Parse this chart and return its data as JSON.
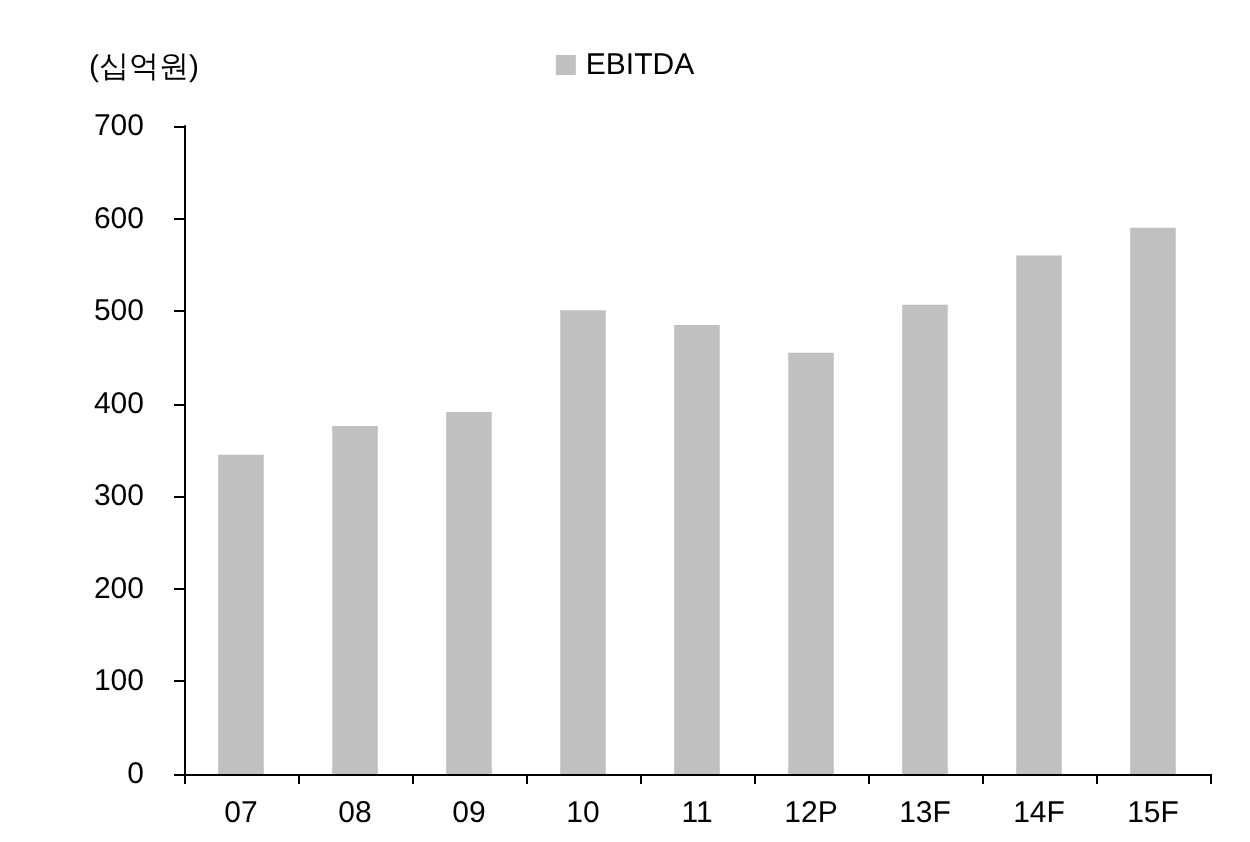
{
  "chart_data": {
    "type": "bar",
    "ylabel": "(십억원)",
    "categories": [
      "07",
      "08",
      "09",
      "10",
      "11",
      "12P",
      "13F",
      "14F",
      "15F"
    ],
    "series": [
      {
        "name": "EBITDA",
        "color": "#c0c0c0",
        "values": [
          345,
          376,
          391,
          501,
          485,
          455,
          507,
          560,
          590
        ]
      }
    ],
    "ylim": [
      0,
      700
    ],
    "yticks": [
      0,
      100,
      200,
      300,
      400,
      500,
      600,
      700
    ],
    "grid": false,
    "legend": "top"
  }
}
